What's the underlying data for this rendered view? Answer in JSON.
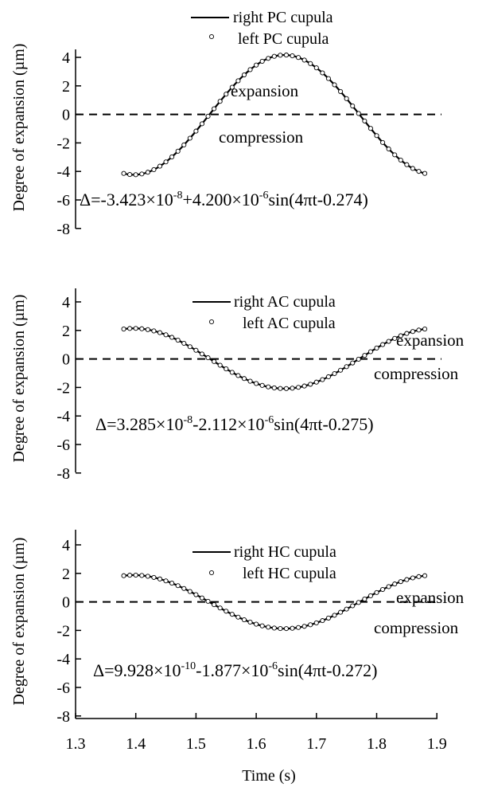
{
  "chart_data": [
    {
      "type": "line",
      "title": "",
      "ylabel": "Degree of expansion (µm)",
      "xlabel": "",
      "xlim": [
        1.3,
        1.95
      ],
      "ylim": [
        -8,
        4.5
      ],
      "yticks": [
        4,
        2,
        0,
        -2,
        -4,
        -6,
        -8
      ],
      "yticklabels": [
        "4",
        "2",
        "0",
        "-2",
        "-4",
        "-6",
        "-8"
      ],
      "grid": false,
      "legend_position": "top-center",
      "series": [
        {
          "name": "right PC cupula",
          "style": "solid line",
          "color": "#000000"
        },
        {
          "name": "left PC cupula",
          "style": "open circles",
          "color": "#000000"
        }
      ],
      "x_range": [
        1.38,
        1.88
      ],
      "model": {
        "offset": -0.03423,
        "amplitude": 4.2,
        "omega": 12.566,
        "phase": -0.274
      },
      "annotations": {
        "above_zero": "expansion",
        "below_zero": "compression",
        "zero_line": "dashed at y=0"
      },
      "equation": {
        "prefix": "Δ=-3.423×10",
        "exp1": "-8",
        "mid": "+4.200×10",
        "exp2": "-6",
        "suffix": "sin(4πt-0.274)"
      }
    },
    {
      "type": "line",
      "title": "",
      "ylabel": "Degree of expansion (µm)",
      "xlabel": "",
      "xlim": [
        1.3,
        1.95
      ],
      "ylim": [
        -8,
        4.5
      ],
      "yticks": [
        4,
        2,
        0,
        -2,
        -4,
        -6,
        -8
      ],
      "yticklabels": [
        "4",
        "2",
        "0",
        "-2",
        "-4",
        "-6",
        "-8"
      ],
      "grid": false,
      "legend_position": "top-center",
      "series": [
        {
          "name": "right AC cupula",
          "style": "solid line",
          "color": "#000000"
        },
        {
          "name": "left AC cupula",
          "style": "open circles",
          "color": "#000000"
        }
      ],
      "x_range": [
        1.38,
        1.88
      ],
      "model": {
        "offset": 0.03285,
        "amplitude": -2.112,
        "omega": 12.566,
        "phase": -0.275
      },
      "annotations": {
        "above_zero": "expansion",
        "below_zero": "compression",
        "zero_line": "dashed at y=0"
      },
      "equation": {
        "prefix": "Δ=3.285×10",
        "exp1": "-8",
        "mid": "-2.112×10",
        "exp2": "-6",
        "suffix": "sin(4πt-0.275)"
      }
    },
    {
      "type": "line",
      "title": "",
      "ylabel": "Degree of expansion (µm)",
      "xlabel": "Time (s)",
      "xlim": [
        1.3,
        1.95
      ],
      "ylim": [
        -8,
        4.5
      ],
      "yticks": [
        4,
        2,
        0,
        -2,
        -4,
        -6,
        -8
      ],
      "yticklabels": [
        "4",
        "2",
        "0",
        "-2",
        "-4",
        "-6",
        "-8"
      ],
      "xticks": [
        1.3,
        1.4,
        1.5,
        1.6,
        1.7,
        1.8,
        1.9
      ],
      "xticklabels": [
        "1.3",
        "1.4",
        "1.5",
        "1.6",
        "1.7",
        "1.8",
        "1.9"
      ],
      "grid": false,
      "legend_position": "top-center",
      "series": [
        {
          "name": "right HC cupula",
          "style": "solid line",
          "color": "#000000"
        },
        {
          "name": "left HC cupula",
          "style": "open circles",
          "color": "#000000"
        }
      ],
      "x_range": [
        1.38,
        1.88
      ],
      "model": {
        "offset": 0.0009928,
        "amplitude": -1.877,
        "omega": 12.566,
        "phase": -0.272
      },
      "annotations": {
        "above_zero": "expansion",
        "below_zero": "compression",
        "zero_line": "dashed at y=0"
      },
      "equation": {
        "prefix": "Δ=9.928×10",
        "exp1": "-10",
        "mid": "-1.877×10",
        "exp2": "-6",
        "suffix": "sin(4πt-0.272)"
      }
    }
  ]
}
